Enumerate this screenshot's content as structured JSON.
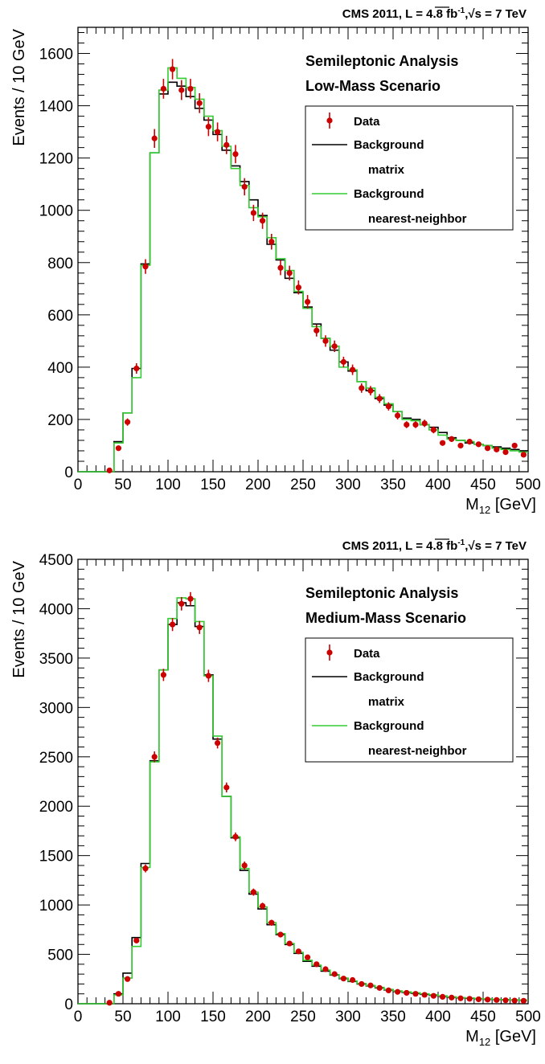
{
  "chart_data": [
    {
      "type": "histogram",
      "header": "CMS 2011, L = 4.8 fb",
      "header_sup": "-1",
      "header_tail": ",",
      "header_sqrt": "√s",
      "header_end": " = 7 TeV",
      "annotation_line1": "Semileptonic Analysis",
      "annotation_line2": "Low-Mass Scenario",
      "ylabel": "Events / 10 GeV",
      "xlabel_main": "M",
      "xlabel_sub": "12",
      "xlabel_unit": " [GeV]",
      "xlim": [
        0,
        500
      ],
      "ylim": [
        0,
        1700
      ],
      "x_ticks": [
        0,
        50,
        100,
        150,
        200,
        250,
        300,
        350,
        400,
        450,
        500
      ],
      "y_ticks": [
        0,
        200,
        400,
        600,
        800,
        1000,
        1200,
        1400,
        1600
      ],
      "legend": {
        "data": "Data",
        "matrix_line1": "Background",
        "matrix_line2": "matrix",
        "nn_line1": "Background",
        "nn_line2": "nearest-neighbor"
      },
      "colors": {
        "data": "#cc0000",
        "matrix": "#000000",
        "nn": "#33cc33"
      },
      "bin_edges_start": 0,
      "bin_width": 10,
      "matrix": [
        0,
        0,
        0,
        0,
        115,
        225,
        395,
        795,
        1220,
        1445,
        1490,
        1475,
        1435,
        1390,
        1345,
        1290,
        1230,
        1170,
        1110,
        1040,
        980,
        870,
        810,
        740,
        685,
        630,
        565,
        510,
        465,
        420,
        385,
        345,
        310,
        280,
        255,
        230,
        205,
        200,
        180,
        170,
        150,
        130,
        120,
        110,
        105,
        100,
        95,
        90,
        85,
        80
      ],
      "nn": [
        0,
        0,
        0,
        0,
        110,
        225,
        360,
        790,
        1220,
        1460,
        1545,
        1505,
        1470,
        1425,
        1360,
        1305,
        1245,
        1160,
        1095,
        1010,
        975,
        895,
        815,
        770,
        690,
        625,
        555,
        510,
        480,
        400,
        390,
        345,
        320,
        285,
        260,
        230,
        200,
        195,
        180,
        160,
        140,
        125,
        120,
        115,
        105,
        100,
        90,
        85,
        80,
        75
      ],
      "data": {
        "x": [
          35,
          45,
          55,
          65,
          75,
          85,
          95,
          105,
          115,
          125,
          135,
          145,
          155,
          165,
          175,
          185,
          195,
          205,
          215,
          225,
          235,
          245,
          255,
          265,
          275,
          285,
          295,
          305,
          315,
          325,
          335,
          345,
          355,
          365,
          375,
          385,
          395,
          405,
          415,
          425,
          435,
          445,
          455,
          465,
          475,
          485,
          495
        ],
        "y": [
          5,
          90,
          190,
          395,
          785,
          1275,
          1465,
          1540,
          1460,
          1465,
          1410,
          1320,
          1300,
          1250,
          1215,
          1090,
          990,
          960,
          880,
          780,
          760,
          705,
          650,
          540,
          500,
          480,
          420,
          390,
          320,
          310,
          280,
          250,
          215,
          180,
          180,
          185,
          160,
          110,
          125,
          100,
          115,
          105,
          90,
          85,
          75,
          100,
          65
        ],
        "err": [
          3,
          10,
          14,
          20,
          28,
          36,
          38,
          39,
          38,
          38,
          38,
          36,
          36,
          35,
          35,
          33,
          31,
          31,
          30,
          28,
          28,
          27,
          26,
          23,
          22,
          22,
          20,
          20,
          18,
          18,
          17,
          16,
          15,
          13,
          13,
          14,
          13,
          10,
          11,
          10,
          11,
          10,
          10,
          9,
          9,
          10,
          8
        ]
      }
    },
    {
      "type": "histogram",
      "header": "CMS 2011, L = 4.8 fb",
      "header_sup": "-1",
      "header_tail": ",",
      "header_sqrt": "√s",
      "header_end": " = 7 TeV",
      "annotation_line1": "Semileptonic Analysis",
      "annotation_line2": "Medium-Mass Scenario",
      "ylabel": "Events / 10 GeV",
      "xlabel_main": "M",
      "xlabel_sub": "12",
      "xlabel_unit": " [GeV]",
      "xlim": [
        0,
        500
      ],
      "ylim": [
        0,
        4500
      ],
      "x_ticks": [
        0,
        50,
        100,
        150,
        200,
        250,
        300,
        350,
        400,
        450,
        500
      ],
      "y_ticks": [
        0,
        500,
        1000,
        1500,
        2000,
        2500,
        3000,
        3500,
        4000,
        4500
      ],
      "legend": {
        "data": "Data",
        "matrix_line1": "Background",
        "matrix_line2": "matrix",
        "nn_line1": "Background",
        "nn_line2": "nearest-neighbor"
      },
      "colors": {
        "data": "#cc0000",
        "matrix": "#000000",
        "nn": "#33cc33"
      },
      "bin_edges_start": 0,
      "bin_width": 10,
      "matrix": [
        0,
        0,
        0,
        0,
        100,
        310,
        670,
        1420,
        2460,
        3380,
        3840,
        4060,
        4030,
        3820,
        3330,
        2680,
        2100,
        1680,
        1350,
        1110,
        960,
        800,
        700,
        600,
        510,
        430,
        380,
        330,
        290,
        255,
        225,
        200,
        180,
        160,
        140,
        125,
        115,
        105,
        95,
        85,
        75,
        65,
        60,
        55,
        50,
        45,
        42,
        40,
        38,
        35
      ],
      "nn": [
        0,
        0,
        0,
        0,
        90,
        260,
        580,
        1380,
        2450,
        3380,
        3900,
        4110,
        4100,
        3870,
        3320,
        2710,
        2100,
        1690,
        1370,
        1130,
        980,
        820,
        710,
        610,
        520,
        440,
        390,
        340,
        295,
        260,
        230,
        205,
        185,
        165,
        145,
        130,
        120,
        110,
        100,
        90,
        80,
        70,
        62,
        58,
        52,
        48,
        44,
        41,
        39,
        36
      ],
      "data": {
        "x": [
          35,
          45,
          55,
          65,
          75,
          85,
          95,
          105,
          115,
          125,
          135,
          145,
          155,
          165,
          175,
          185,
          195,
          205,
          215,
          225,
          235,
          245,
          255,
          265,
          275,
          285,
          295,
          305,
          315,
          325,
          335,
          345,
          355,
          365,
          375,
          385,
          395,
          405,
          415,
          425,
          435,
          445,
          455,
          465,
          475,
          485,
          495
        ],
        "y": [
          10,
          100,
          250,
          640,
          1370,
          2500,
          3330,
          3840,
          4050,
          4100,
          3810,
          3320,
          2640,
          2190,
          1690,
          1400,
          1130,
          990,
          820,
          700,
          610,
          530,
          470,
          400,
          350,
          300,
          255,
          240,
          200,
          185,
          160,
          135,
          120,
          110,
          100,
          90,
          80,
          70,
          62,
          55,
          50,
          45,
          42,
          38,
          35,
          32,
          30
        ],
        "err": [
          5,
          12,
          18,
          28,
          40,
          55,
          62,
          66,
          68,
          68,
          66,
          62,
          55,
          50,
          44,
          40,
          36,
          33,
          30,
          28,
          26,
          24,
          23,
          21,
          20,
          18,
          17,
          16,
          15,
          14,
          13,
          12,
          11,
          11,
          10,
          10,
          9,
          9,
          8,
          8,
          7,
          7,
          7,
          7,
          6,
          6,
          6
        ]
      }
    }
  ]
}
